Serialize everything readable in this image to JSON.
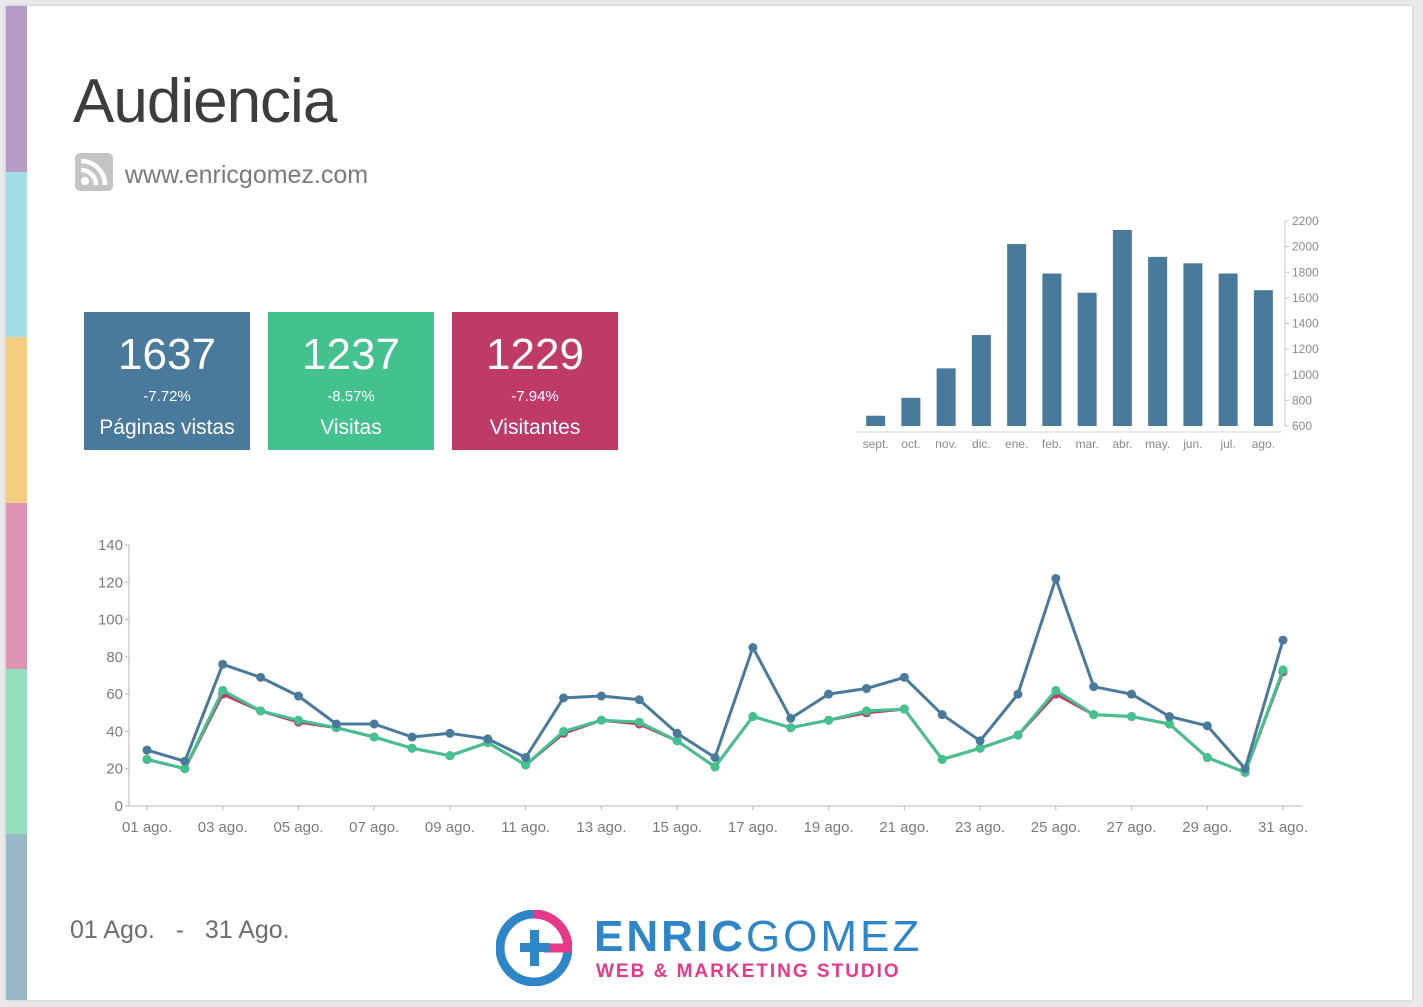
{
  "header": {
    "title": "Audiencia",
    "site": "www.enricgomez.com"
  },
  "side_stripes": [
    "#b49cc4",
    "#a5dde6",
    "#f3cd82",
    "#de94b2",
    "#94dfbd",
    "#9ab7c8"
  ],
  "kpis": [
    {
      "value": "1637",
      "change": "-7.72%",
      "label": "Páginas vistas",
      "color": "#4a7a9b"
    },
    {
      "value": "1237",
      "change": "-8.57%",
      "label": "Visitas",
      "color": "#43c28f"
    },
    {
      "value": "1229",
      "change": "-7.94%",
      "label": "Visitantes",
      "color": "#bf3a66"
    }
  ],
  "footer": {
    "date_from": "01 Ago.",
    "separator": "-",
    "date_to": "31 Ago.",
    "brand_bold": "ENRIC",
    "brand_light": "GOMEZ",
    "tagline": "WEB & MARKETING STUDIO"
  },
  "chart_data": [
    {
      "type": "bar",
      "categories": [
        "sept.",
        "oct.",
        "nov.",
        "dic.",
        "ene.",
        "feb.",
        "mar.",
        "abr.",
        "may.",
        "jun.",
        "jul.",
        "ago."
      ],
      "values": [
        680,
        820,
        1050,
        1310,
        2020,
        1790,
        1640,
        2130,
        1920,
        1870,
        1790,
        1660
      ],
      "ylim": [
        600,
        2200
      ],
      "yticks": [
        600,
        800,
        1000,
        1200,
        1400,
        1600,
        1800,
        2000,
        2200
      ],
      "axis_side": "right",
      "color": "#4a7a9b"
    },
    {
      "type": "line",
      "x": [
        "01 ago.",
        "02 ago.",
        "03 ago.",
        "04 ago.",
        "05 ago.",
        "06 ago.",
        "07 ago.",
        "08 ago.",
        "09 ago.",
        "10 ago.",
        "11 ago.",
        "12 ago.",
        "13 ago.",
        "14 ago.",
        "15 ago.",
        "16 ago.",
        "17 ago.",
        "18 ago.",
        "19 ago.",
        "20 ago.",
        "21 ago.",
        "22 ago.",
        "23 ago.",
        "24 ago.",
        "25 ago.",
        "26 ago.",
        "27 ago.",
        "28 ago.",
        "29 ago.",
        "30 ago.",
        "31 ago."
      ],
      "xtick_labels": [
        "01 ago.",
        "03 ago.",
        "05 ago.",
        "07 ago.",
        "09 ago.",
        "11 ago.",
        "13 ago.",
        "15 ago.",
        "17 ago.",
        "19 ago.",
        "21 ago.",
        "23 ago.",
        "25 ago.",
        "27 ago.",
        "29 ago.",
        "31 ago."
      ],
      "ylim": [
        0,
        140
      ],
      "yticks": [
        0,
        20,
        40,
        60,
        80,
        100,
        120,
        140
      ],
      "series": [
        {
          "color": "#bf3a66",
          "values": [
            25,
            20,
            60,
            51,
            45,
            42,
            37,
            31,
            27,
            34,
            22,
            39,
            46,
            44,
            35,
            21,
            48,
            42,
            46,
            50,
            52,
            25,
            31,
            38,
            60,
            49,
            48,
            44,
            26,
            18,
            72
          ]
        },
        {
          "color": "#43c28f",
          "values": [
            25,
            20,
            62,
            51,
            46,
            42,
            37,
            31,
            27,
            34,
            22,
            40,
            46,
            45,
            35,
            21,
            48,
            42,
            46,
            51,
            52,
            25,
            31,
            38,
            62,
            49,
            48,
            44,
            26,
            18,
            73
          ]
        },
        {
          "color": "#4a7a9b",
          "values": [
            30,
            24,
            76,
            69,
            59,
            44,
            44,
            37,
            39,
            36,
            26,
            58,
            59,
            57,
            39,
            26,
            85,
            47,
            60,
            63,
            69,
            49,
            35,
            60,
            122,
            64,
            60,
            48,
            43,
            20,
            89
          ]
        }
      ]
    }
  ]
}
